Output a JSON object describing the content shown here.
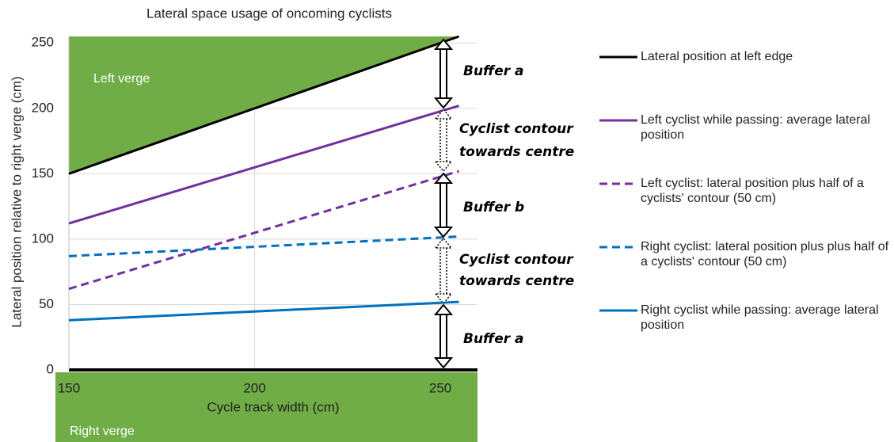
{
  "chart_data": {
    "type": "line",
    "title": "Lateral space usage of oncoming cyclists",
    "x_label": "Cycle track width (cm)",
    "y_label": "Lateral position relative to right verge (cm)",
    "x": [
      150,
      255
    ],
    "xlim": [
      150,
      260
    ],
    "ylim": [
      0,
      255
    ],
    "xticks": [
      150,
      200,
      250
    ],
    "yticks": [
      0,
      50,
      100,
      150,
      200,
      250
    ],
    "grid": true,
    "legend": "right",
    "series": [
      {
        "name": "Lateral position at left edge",
        "color": "#000000",
        "dashed": false,
        "values": [
          150,
          255
        ]
      },
      {
        "name": "Left cyclist while passing: average lateral position",
        "color": "#7030a0",
        "dashed": false,
        "values": [
          112,
          202
        ]
      },
      {
        "name": "Left cyclist: lateral position plus half of a cyclists' contour (50 cm)",
        "color": "#7030a0",
        "dashed": true,
        "values": [
          62,
          152
        ]
      },
      {
        "name": "Right cyclist: lateral position plus plus half of a cyclists' contour (50 cm)",
        "color": "#0070c0",
        "dashed": true,
        "values": [
          87,
          102
        ]
      },
      {
        "name": "Right cyclist while passing: average lateral position",
        "color": "#0070c0",
        "dashed": false,
        "values": [
          38,
          52
        ]
      }
    ],
    "annotations": [
      "Left verge",
      "Right verge",
      "Buffer a",
      "Cyclist contour",
      "towards centre",
      "Buffer b",
      "Cyclist contour",
      "towards centre",
      "Buffer a"
    ]
  }
}
